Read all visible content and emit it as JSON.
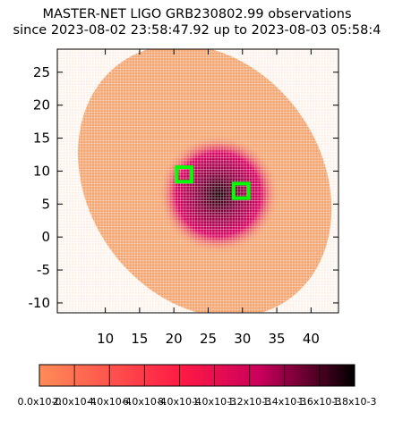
{
  "chart_data": {
    "type": "heatmap",
    "title": "MASTER-NET LIGO GRB230802.99 observations",
    "subtitle": "since 2023-08-02 23:58:47.92 up to 2023-08-03 05:58:4",
    "xlim": [
      3,
      44
    ],
    "ylim": [
      -11.5,
      28.5
    ],
    "x_ticks": [
      "10",
      "15",
      "20",
      "25",
      "30",
      "35",
      "40"
    ],
    "x_tick_values": [
      10,
      15,
      20,
      25,
      30,
      35,
      40
    ],
    "y_ticks": [
      "25",
      "20",
      "15",
      "10",
      "5",
      "0",
      "-5",
      "-10"
    ],
    "y_tick_values": [
      25,
      20,
      15,
      10,
      5,
      0,
      -5,
      -10
    ],
    "grid": false,
    "skymap_region": {
      "center": [
        24.5,
        8.5
      ],
      "semi_axes_deg": [
        17,
        22
      ],
      "rotation_deg": -35
    },
    "peak_region": {
      "center": [
        26.5,
        6.5
      ],
      "semi_axes_deg": [
        4,
        4.5
      ]
    },
    "observed_fields": [
      {
        "center": [
          21.5,
          9.5
        ],
        "size_deg": 2.2
      },
      {
        "center": [
          29.8,
          7.0
        ],
        "size_deg": 2.2
      }
    ],
    "field_color": "#00ff00",
    "colorbar": {
      "range": [
        0.0,
        0.0018
      ],
      "tick_values": [
        0.0,
        0.0002,
        0.0004,
        0.0006,
        0.0008,
        0.001,
        0.0012,
        0.0014,
        0.0016,
        0.0018
      ],
      "tick_labels": [
        "0.0x10-0",
        "2.0x10-4",
        "4.0x10-4",
        "6.0x10-4",
        "8.0x10-4",
        "1.0x10-3",
        "1.2x10-3",
        "1.4x10-3",
        "1.6x10-3",
        "1.8x10-3"
      ],
      "colors": [
        "#ff8c57",
        "#ff1a44",
        "#c9005c",
        "#000000"
      ]
    },
    "low_color": "#f4a46e"
  }
}
